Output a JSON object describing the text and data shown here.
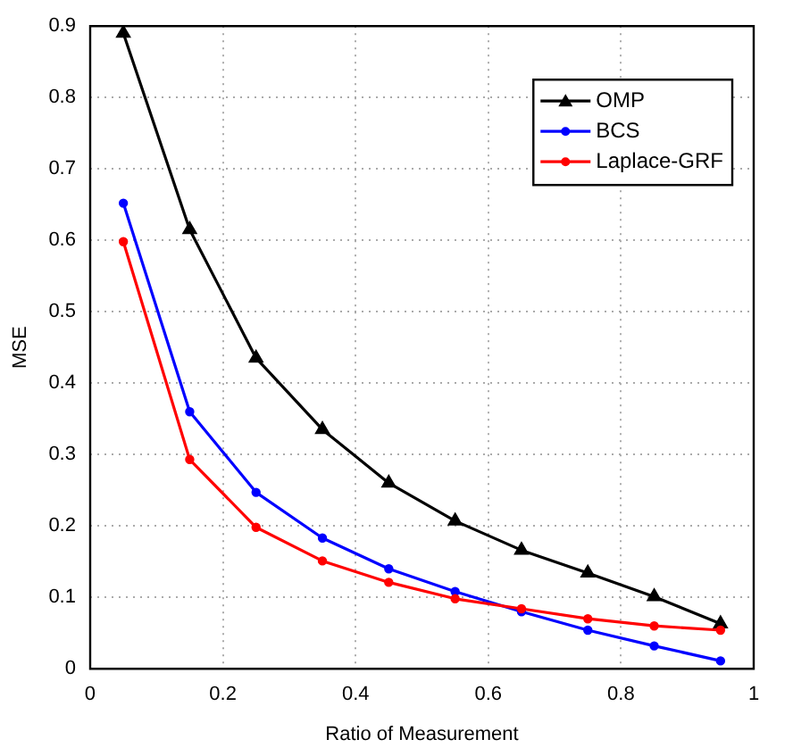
{
  "chart_data": {
    "type": "line",
    "xlabel": "Ratio of Measurement",
    "ylabel": "MSE",
    "x": [
      0.05,
      0.15,
      0.25,
      0.35,
      0.45,
      0.55,
      0.65,
      0.75,
      0.85,
      0.95
    ],
    "xlim": [
      0,
      1
    ],
    "xticks": [
      0,
      0.2,
      0.4,
      0.6,
      0.8,
      1
    ],
    "ylim": [
      0,
      0.9
    ],
    "yticks": [
      0,
      0.1,
      0.2,
      0.3,
      0.4,
      0.5,
      0.6,
      0.7,
      0.8,
      0.9
    ],
    "grid": true,
    "legend": "top right",
    "series": [
      {
        "name": "OMP",
        "color": "#000000",
        "marker": "triangle",
        "values": [
          0.89,
          0.615,
          0.435,
          0.335,
          0.26,
          0.207,
          0.166,
          0.134,
          0.101,
          0.063
        ]
      },
      {
        "name": "BCS",
        "color": "#0000ff",
        "marker": "circle",
        "values": [
          0.652,
          0.36,
          0.247,
          0.183,
          0.14,
          0.108,
          0.08,
          0.054,
          0.032,
          0.011
        ]
      },
      {
        "name": "Laplace-GRF",
        "color": "#ff0000",
        "marker": "circle",
        "values": [
          0.598,
          0.293,
          0.198,
          0.151,
          0.121,
          0.098,
          0.084,
          0.07,
          0.06,
          0.054
        ]
      }
    ]
  }
}
